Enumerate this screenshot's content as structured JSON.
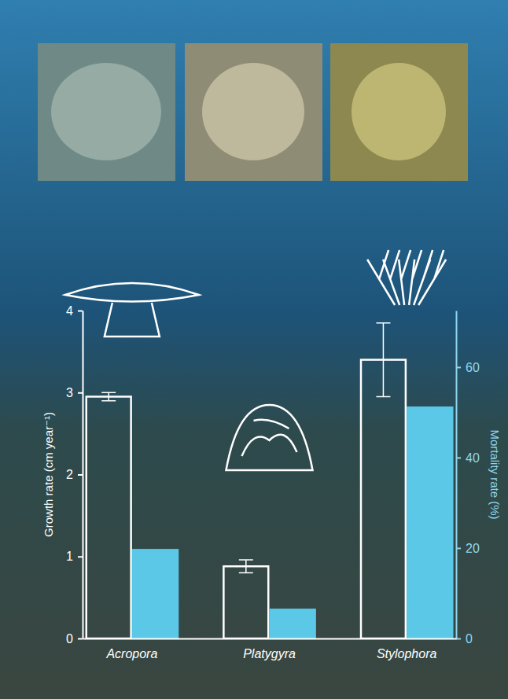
{
  "chart_data": {
    "type": "bar",
    "categories": [
      "Acropora",
      "Platygyra",
      "Stylophora"
    ],
    "series": [
      {
        "color": "#ffffff",
        "values": [
          2.95,
          0.88,
          3.4
        ],
        "errors": [
          0.05,
          0.08,
          0.45
        ]
      },
      {
        "color": "#5bc8e8",
        "values": [
          19.8,
          6.6,
          51.3
        ],
        "axis": "y2"
      }
    ],
    "y_label": "Growth rate (cm year⁻¹)",
    "y2_label": "Mortality rate (%)",
    "ylim": [
      0,
      4
    ],
    "yticks": [
      0,
      1,
      2,
      3,
      4
    ],
    "y2lim": [
      0,
      72.5
    ],
    "y2ticks": [
      0,
      20,
      40,
      60
    ],
    "grid": false
  }
}
